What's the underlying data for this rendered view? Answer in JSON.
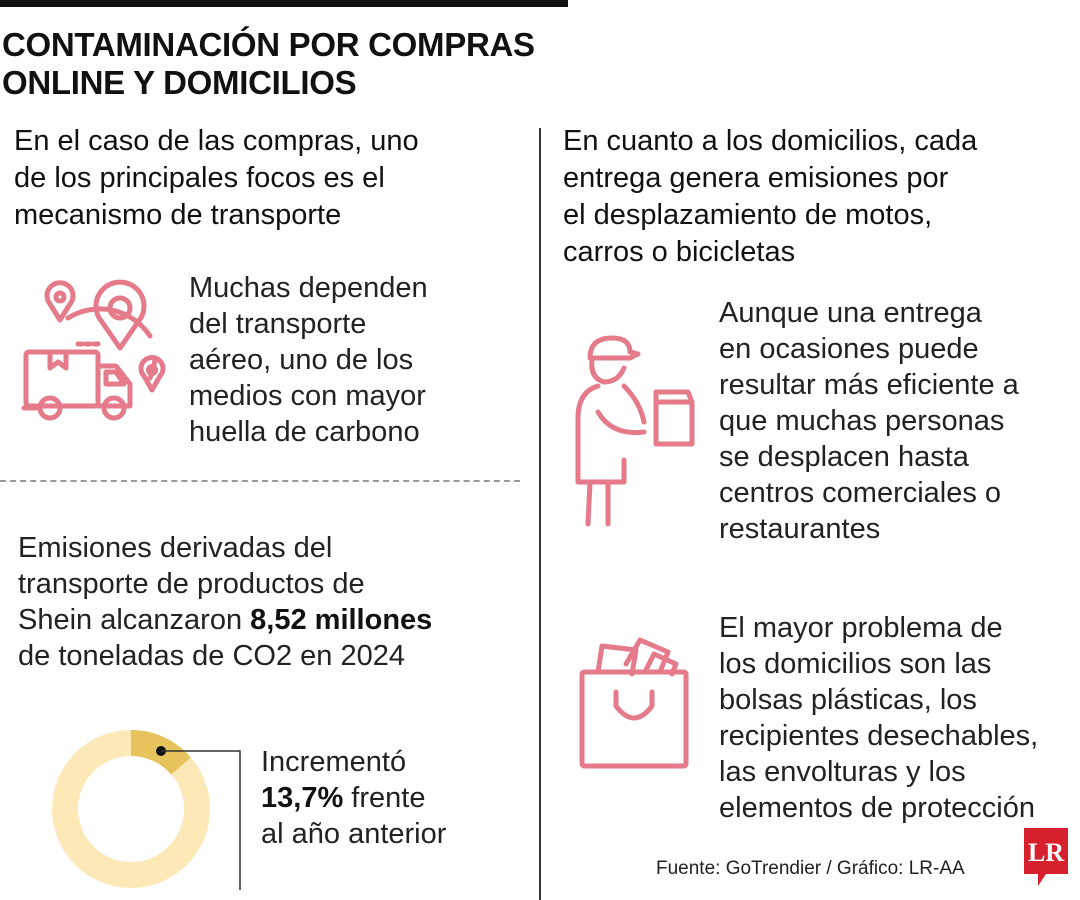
{
  "title_line1": "CONTAMINACIÓN POR COMPRAS",
  "title_line2": "ONLINE Y DOMICILIOS",
  "left_lead": [
    "En el caso de las compras, uno",
    "de los principales focos es el",
    "mecanismo de transporte"
  ],
  "right_lead": [
    "En cuanto a los domicilios, cada",
    "entrega genera emisiones por",
    "el desplazamiento de motos,",
    "carros o bicicletas"
  ],
  "air_text": [
    "Muchas dependen",
    "del transporte",
    "aéreo, uno de los",
    "medios con mayor",
    "huella de carbono"
  ],
  "emissions_text": {
    "line1": "Emisiones derivadas del",
    "line2": "transporte de productos de",
    "line3_prefix": "Shein alcanzaron ",
    "line3_bold": "8,52 millones",
    "line4": "de toneladas de CO2 en 2024"
  },
  "increase": {
    "line1": "Incrementó",
    "bold": "13,7%",
    "line2_suffix": " frente",
    "line3": "al año anterior",
    "fraction": 0.137
  },
  "delivery_text": [
    "Aunque una entrega",
    "en ocasiones puede",
    "resultar más eficiente a",
    "que muchas personas",
    "se desplacen hasta",
    "centros comerciales o",
    "restaurantes"
  ],
  "plastic_text": [
    "El mayor problema de",
    "los domicilios son las",
    "bolsas plásticas, los",
    "recipientes desechables,",
    "las envolturas y los",
    "elementos de protección"
  ],
  "source": "Fuente: GoTrendier / Gráfico: LR-AA",
  "logo": "LR",
  "icons": [
    "truck-location-icon",
    "delivery-person-icon",
    "shopping-bag-icon"
  ],
  "colors": {
    "icon": "#e57a8a",
    "donut_base": "#fde9b8",
    "donut_highlight": "#e6c35c",
    "logo": "#d6202e"
  }
}
